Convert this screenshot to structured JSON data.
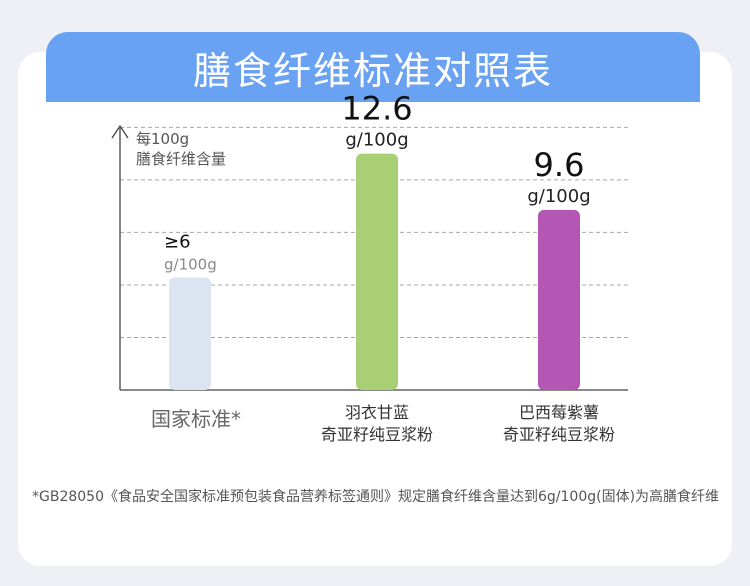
{
  "title": "膳食纤维标准对照表",
  "chart_data": {
    "type": "bar",
    "ylabel_lines": [
      "每100g",
      "膳食纤维含量"
    ],
    "ylim": [
      0,
      14.5
    ],
    "gridlines": [
      2.8,
      5.6,
      8.4,
      11.2,
      14.0
    ],
    "bars": [
      {
        "label_lines": [
          "国家标准*"
        ],
        "value": 6,
        "value_text": "≥6",
        "unit": "g/100g",
        "color": "#dde4f1",
        "value_color": "#111111",
        "unit_color": "#8a8a8a"
      },
      {
        "label_lines": [
          "羽衣甘蓝",
          "奇亚籽纯豆浆粉"
        ],
        "value": 12.6,
        "value_text": "12.6",
        "unit": "g/100g",
        "color": "#a8cf74",
        "value_color": "#111111",
        "unit_color": "#222222"
      },
      {
        "label_lines": [
          "巴西莓紫薯",
          "奇亚籽纯豆浆粉"
        ],
        "value": 9.6,
        "value_text": "9.6",
        "unit": "g/100g",
        "color": "#b457b4",
        "value_color": "#111111",
        "unit_color": "#222222"
      }
    ]
  },
  "footnote": "*GB28050《食品安全国家标准预包装食品营养标签通则》规定膳食纤维含量达到6g/100g(固体)为高膳食纤维"
}
